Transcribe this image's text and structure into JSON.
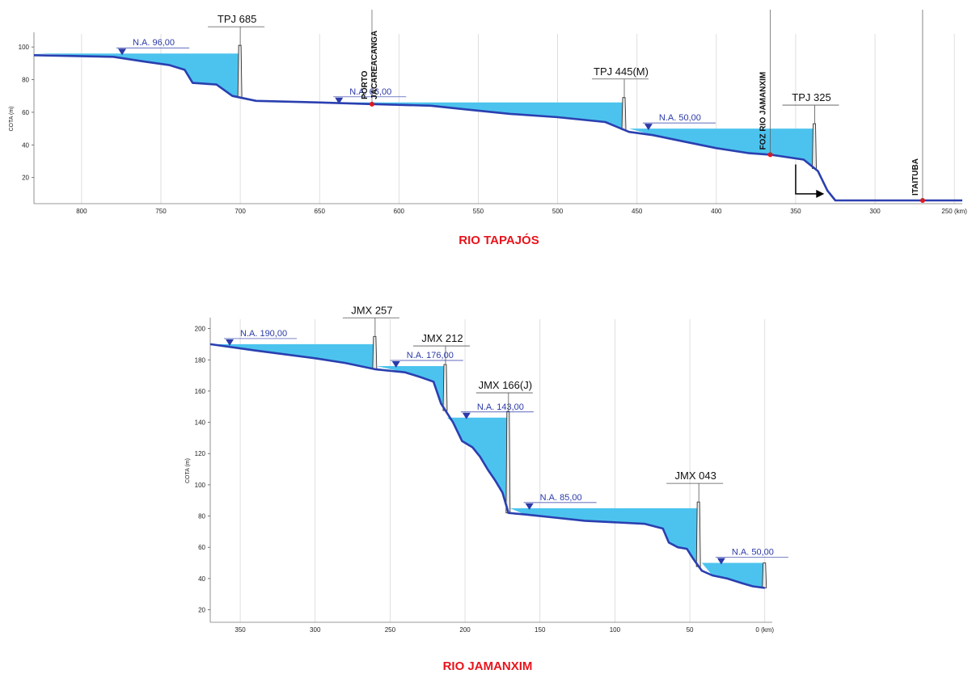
{
  "chart_data": [
    {
      "type": "area",
      "title": "RIO TAPAJÓS",
      "ylabel": "COTA (m)",
      "xlim": [
        830,
        245
      ],
      "ylim": [
        4,
        108
      ],
      "x_ticks": [
        {
          "v": 800,
          "label": "800"
        },
        {
          "v": 750,
          "label": "750"
        },
        {
          "v": 700,
          "label": "700"
        },
        {
          "v": 650,
          "label": "650"
        },
        {
          "v": 600,
          "label": "600"
        },
        {
          "v": 550,
          "label": "550"
        },
        {
          "v": 500,
          "label": "500"
        },
        {
          "v": 450,
          "label": "450"
        },
        {
          "v": 400,
          "label": "400"
        },
        {
          "v": 350,
          "label": "350"
        },
        {
          "v": 300,
          "label": "300"
        },
        {
          "v": 250,
          "label": "250 (km)"
        }
      ],
      "y_ticks": [
        20,
        40,
        60,
        80,
        100
      ],
      "riverbed": [
        [
          830,
          95
        ],
        [
          780,
          94
        ],
        [
          760,
          91
        ],
        [
          745,
          89
        ],
        [
          735,
          86
        ],
        [
          730,
          78
        ],
        [
          715,
          77
        ],
        [
          705,
          70
        ],
        [
          690,
          67
        ],
        [
          650,
          66
        ],
        [
          617,
          65
        ],
        [
          580,
          64
        ],
        [
          560,
          62
        ],
        [
          530,
          59
        ],
        [
          500,
          57
        ],
        [
          470,
          54
        ],
        [
          455,
          48
        ],
        [
          440,
          46
        ],
        [
          420,
          42
        ],
        [
          400,
          38
        ],
        [
          380,
          35
        ],
        [
          366,
          34
        ],
        [
          345,
          31
        ],
        [
          336,
          24
        ],
        [
          330,
          12
        ],
        [
          325,
          6
        ],
        [
          300,
          6
        ],
        [
          270,
          6
        ],
        [
          245,
          6
        ]
      ],
      "reservoirs": [
        {
          "na": 96,
          "label": "N.A. 96,00",
          "x_start": 830,
          "dam_km": 700,
          "dam_name": "TPJ 685",
          "crest": 101
        },
        {
          "na": 66,
          "label": "N.A. 66,00",
          "x_start": 650,
          "dam_km": 458,
          "dam_name": "TPJ 445(M)",
          "crest": 69
        },
        {
          "na": 50,
          "label": "N.A. 50,00",
          "x_start": 455,
          "dam_km": 338,
          "dam_name": "TPJ 325",
          "crest": 53
        }
      ],
      "places": [
        {
          "km": 617,
          "elev": 65,
          "line1": "PORTO",
          "line2": "JACAREACANGA"
        },
        {
          "km": 366,
          "elev": 34,
          "line1": "FOZ RIO JAMANXIM",
          "line2": ""
        },
        {
          "km": 270,
          "elev": 6,
          "line1": "ITAITUBA",
          "line2": ""
        }
      ],
      "arrow": {
        "from_km": 350,
        "to_km": 333,
        "top": 28,
        "bottom": 10
      }
    },
    {
      "type": "area",
      "title": "RIO JAMANXIM",
      "ylabel": "COTA (m)",
      "xlim": [
        370,
        -5
      ],
      "ylim": [
        12,
        206
      ],
      "x_ticks": [
        {
          "v": 350,
          "label": "350"
        },
        {
          "v": 300,
          "label": "300"
        },
        {
          "v": 250,
          "label": "250"
        },
        {
          "v": 200,
          "label": "200"
        },
        {
          "v": 150,
          "label": "150"
        },
        {
          "v": 100,
          "label": "100"
        },
        {
          "v": 50,
          "label": "50"
        },
        {
          "v": 0,
          "label": "0 (km)"
        }
      ],
      "y_ticks": [
        20,
        40,
        60,
        80,
        100,
        120,
        140,
        160,
        180,
        200
      ],
      "riverbed": [
        [
          370,
          190
        ],
        [
          340,
          186
        ],
        [
          300,
          181
        ],
        [
          280,
          178
        ],
        [
          260,
          174
        ],
        [
          240,
          172
        ],
        [
          230,
          169
        ],
        [
          221,
          166
        ],
        [
          216,
          152
        ],
        [
          212,
          146
        ],
        [
          208,
          140
        ],
        [
          202,
          128
        ],
        [
          195,
          124
        ],
        [
          190,
          118
        ],
        [
          185,
          110
        ],
        [
          180,
          103
        ],
        [
          175,
          95
        ],
        [
          171,
          82
        ],
        [
          160,
          81
        ],
        [
          140,
          79
        ],
        [
          120,
          77
        ],
        [
          100,
          76
        ],
        [
          80,
          75
        ],
        [
          68,
          72
        ],
        [
          64,
          63
        ],
        [
          58,
          60
        ],
        [
          52,
          59
        ],
        [
          48,
          53
        ],
        [
          45,
          49
        ],
        [
          42,
          45
        ],
        [
          35,
          42
        ],
        [
          25,
          40
        ],
        [
          15,
          37
        ],
        [
          8,
          35
        ],
        [
          0,
          34
        ]
      ],
      "reservoirs": [
        {
          "na": 190,
          "label": "N.A. 190,00",
          "x_start": 370,
          "dam_km": 260,
          "dam_name": "JMX 257",
          "crest": 195
        },
        {
          "na": 176,
          "label": "N.A. 176,00",
          "x_start": 259,
          "dam_km": 213,
          "dam_name": "JMX 212",
          "crest": 177
        },
        {
          "na": 143,
          "label": "N.A. 143,00",
          "x_start": 212,
          "dam_km": 171,
          "dam_name": "JMX 166(J)",
          "crest": 147
        },
        {
          "na": 85,
          "label": "N.A. 85,00",
          "x_start": 170,
          "dam_km": 44,
          "dam_name": "JMX 043",
          "crest": 89
        },
        {
          "na": 50,
          "label": "N.A. 50,00",
          "x_start": 42,
          "dam_km": 0,
          "dam_name": "",
          "crest": 50
        }
      ],
      "places": [],
      "arrow": null
    }
  ],
  "colors": {
    "water": "#4cc3ee",
    "water_shade": "#2f9fd6",
    "riverbed": "#2a3fb0",
    "marker": "#e8141c",
    "na_text": "#2b3aa8",
    "grid": "#d7d7d7"
  }
}
